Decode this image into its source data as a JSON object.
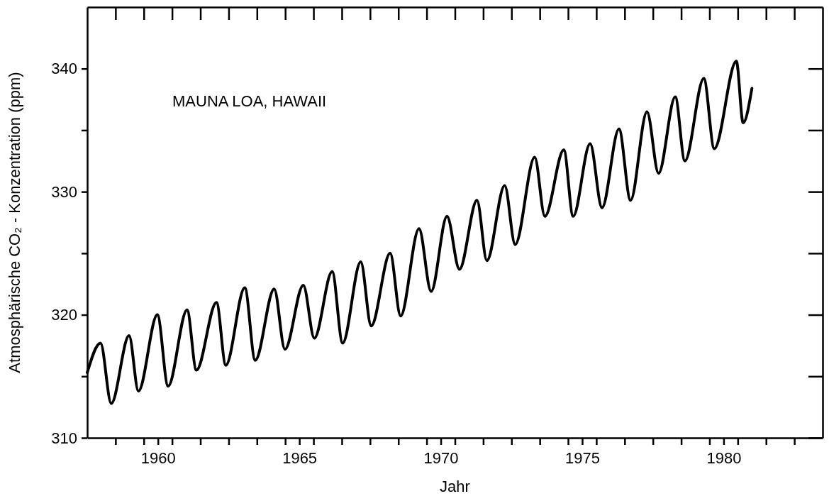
{
  "chart_data": {
    "type": "line",
    "xlabel": "Jahr",
    "ylabel": "Atmosphärische CO₂ - Konzentration (ppm)",
    "annotations": [
      "MAUNA LOA, HAWAII"
    ],
    "xlim": [
      1957.5,
      1983.5
    ],
    "ylim": [
      310,
      345
    ],
    "xticks": [
      {
        "value": 1958.5,
        "label": null
      },
      {
        "value": 1959.5,
        "label": null
      },
      1960,
      {
        "value": 1960.5,
        "label": null
      },
      {
        "value": 1961.5,
        "label": null
      },
      {
        "value": 1962.5,
        "label": null
      },
      {
        "value": 1963.5,
        "label": null
      },
      {
        "value": 1964.5,
        "label": null
      },
      1965,
      {
        "value": 1965.5,
        "label": null
      },
      {
        "value": 1966.5,
        "label": null
      },
      {
        "value": 1967.5,
        "label": null
      },
      {
        "value": 1968.5,
        "label": null
      },
      {
        "value": 1969.5,
        "label": null
      },
      1970,
      {
        "value": 1970.5,
        "label": null
      },
      {
        "value": 1971.5,
        "label": null
      },
      {
        "value": 1972.5,
        "label": null
      },
      {
        "value": 1973.5,
        "label": null
      },
      {
        "value": 1974.5,
        "label": null
      },
      1975,
      {
        "value": 1975.5,
        "label": null
      },
      {
        "value": 1976.5,
        "label": null
      },
      {
        "value": 1977.5,
        "label": null
      },
      {
        "value": 1978.5,
        "label": null
      },
      {
        "value": 1979.5,
        "label": null
      },
      1980,
      {
        "value": 1980.5,
        "label": null
      },
      {
        "value": 1981.5,
        "label": null
      },
      {
        "value": 1982.5,
        "label": null
      }
    ],
    "yticks": [
      310,
      {
        "value": 315,
        "label": null
      },
      320,
      {
        "value": 325,
        "label": null
      },
      330,
      {
        "value": 335,
        "label": null
      },
      340
    ],
    "grid": false,
    "marker": "none",
    "line_style": "solid",
    "series": [
      {
        "color": "#000000",
        "x": [
          1957.5,
          1957.97,
          1958.35,
          1958.98,
          1959.31,
          1959.98,
          1960.36,
          1961.03,
          1961.36,
          1962.07,
          1962.4,
          1963.07,
          1963.44,
          1964.11,
          1964.49,
          1965.14,
          1965.53,
          1966.16,
          1966.53,
          1967.17,
          1967.54,
          1968.21,
          1968.58,
          1969.23,
          1969.66,
          1970.22,
          1970.66,
          1971.28,
          1971.63,
          1972.26,
          1972.63,
          1973.32,
          1973.68,
          1974.35,
          1974.68,
          1975.28,
          1975.7,
          1976.3,
          1976.71,
          1977.29,
          1977.7,
          1978.29,
          1978.63,
          1979.3,
          1979.67,
          1980.45,
          1980.69,
          1981.0
        ],
        "values": [
          315.3,
          317.7,
          312.8,
          318.3,
          313.8,
          320.0,
          314.2,
          320.4,
          315.5,
          321.0,
          315.9,
          322.2,
          316.3,
          322.1,
          317.2,
          322.4,
          318.1,
          323.5,
          317.7,
          324.3,
          319.1,
          325.0,
          319.9,
          327.0,
          321.9,
          328.0,
          323.7,
          329.3,
          324.4,
          330.5,
          325.7,
          332.8,
          328.0,
          333.4,
          328.0,
          333.9,
          328.7,
          335.1,
          329.3,
          336.5,
          331.5,
          337.7,
          332.5,
          339.2,
          333.5,
          340.6,
          335.6,
          338.4
        ]
      }
    ]
  }
}
